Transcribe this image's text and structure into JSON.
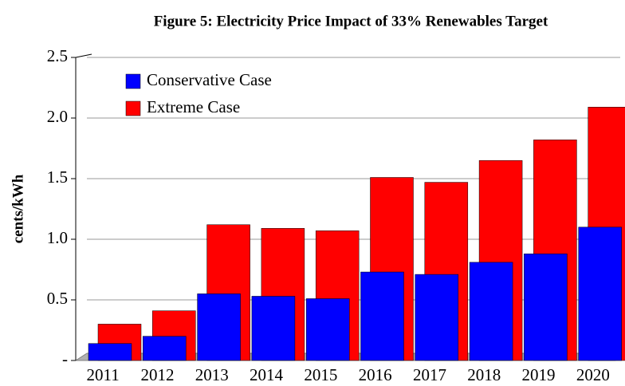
{
  "chart_data": {
    "type": "bar",
    "title": "Figure 5: Electricity Price Impact of 33% Renewables Target",
    "y_label": "cents/kWh",
    "categories": [
      "2011",
      "2012",
      "2013",
      "2014",
      "2015",
      "2016",
      "2017",
      "2018",
      "2019",
      "2020"
    ],
    "series": [
      {
        "name": "Conservative Case",
        "color": "#0000ff",
        "values": [
          0.14,
          0.2,
          0.55,
          0.53,
          0.51,
          0.73,
          0.71,
          0.81,
          0.88,
          1.1
        ]
      },
      {
        "name": "Extreme Case",
        "color": "#ff0000",
        "values": [
          0.3,
          0.41,
          1.12,
          1.09,
          1.07,
          1.51,
          1.47,
          1.65,
          1.82,
          2.09
        ]
      }
    ],
    "ylim": [
      0,
      2.5
    ],
    "yticks": [
      {
        "value": 0,
        "label": "-"
      },
      0.5,
      {
        "value": 1,
        "label": "1.0"
      },
      1.5,
      {
        "value": 2,
        "label": "2.0"
      },
      2.5
    ],
    "grid": true,
    "legend": "upper left"
  }
}
